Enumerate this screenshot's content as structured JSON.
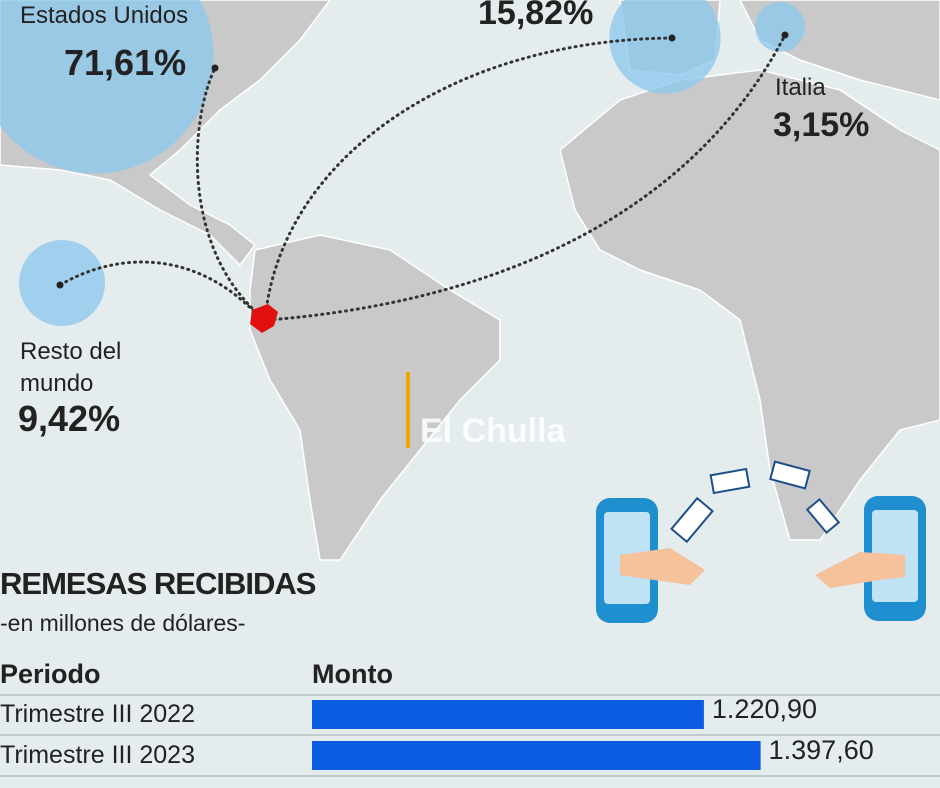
{
  "watermark": "El Chulla",
  "chart_data": [
    {
      "type": "bubble",
      "categories": [
        "Estados Unidos",
        null,
        "Italia",
        "Resto del mundo"
      ],
      "values": [
        71.61,
        15.82,
        3.15,
        9.42
      ],
      "value_labels": [
        "71,61%",
        "15,82%",
        "3,15%",
        "9,42%"
      ],
      "color": "#8ec9ee"
    },
    {
      "type": "bar",
      "title": "REMESAS RECIBIDAS",
      "subtitle": "-en millones de dólares-",
      "x_label": "Periodo",
      "y_label": "Monto",
      "categories": [
        "Trimestre III 2022",
        "Trimestre III 2023"
      ],
      "values": [
        1220.9,
        1397.6
      ],
      "value_labels": [
        "1.220,90",
        "1.397,60"
      ],
      "color": "#0b5ce0"
    }
  ]
}
